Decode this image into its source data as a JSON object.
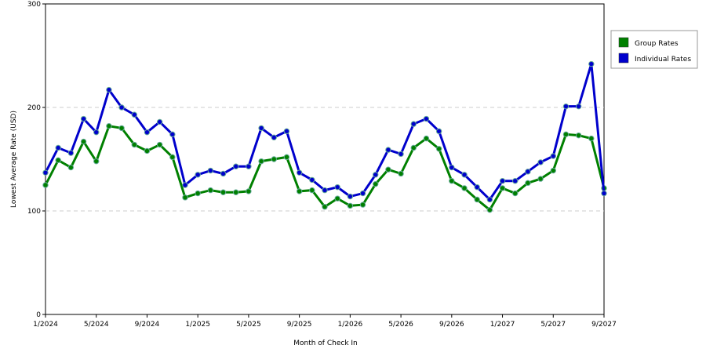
{
  "chart_data": {
    "type": "line",
    "x_label": "Month of Check In",
    "y_label": "Lowest Average Rate (USD)",
    "categories": [
      "1/2024",
      null,
      null,
      null,
      "5/2024",
      null,
      null,
      null,
      "9/2024",
      null,
      null,
      null,
      "1/2025",
      null,
      null,
      null,
      "5/2025",
      null,
      null,
      null,
      "9/2025",
      null,
      null,
      null,
      "1/2026",
      null,
      null,
      null,
      "5/2026",
      null,
      null,
      null,
      "9/2026",
      null,
      null,
      null,
      "1/2027",
      null,
      null,
      null,
      "5/2027",
      null,
      null,
      null,
      "9/2027"
    ],
    "series": [
      {
        "name": "Group Rates",
        "color": "#008000",
        "values": [
          125,
          149,
          142,
          167,
          148,
          182,
          180,
          164,
          158,
          164,
          152,
          113,
          117,
          120,
          118,
          118,
          119,
          148,
          150,
          152,
          119,
          120,
          104,
          112,
          105,
          106,
          126,
          140,
          136,
          161,
          170,
          160,
          129,
          122,
          111,
          101,
          122,
          117,
          127,
          131,
          139,
          174,
          173,
          170,
          122
        ]
      },
      {
        "name": "Individual Rates",
        "color": "#0000cc",
        "values": [
          137,
          161,
          156,
          189,
          176,
          217,
          200,
          193,
          176,
          186,
          174,
          125,
          135,
          139,
          136,
          143,
          143,
          180,
          171,
          177,
          137,
          130,
          120,
          123,
          114,
          117,
          135,
          159,
          155,
          184,
          189,
          177,
          142,
          135,
          123,
          111,
          129,
          129,
          138,
          147,
          153,
          201,
          201,
          242,
          117
        ]
      }
    ],
    "ylim": [
      0,
      300
    ],
    "yticks": [
      0,
      100,
      200,
      300
    ],
    "grid": true,
    "legend": "right"
  }
}
